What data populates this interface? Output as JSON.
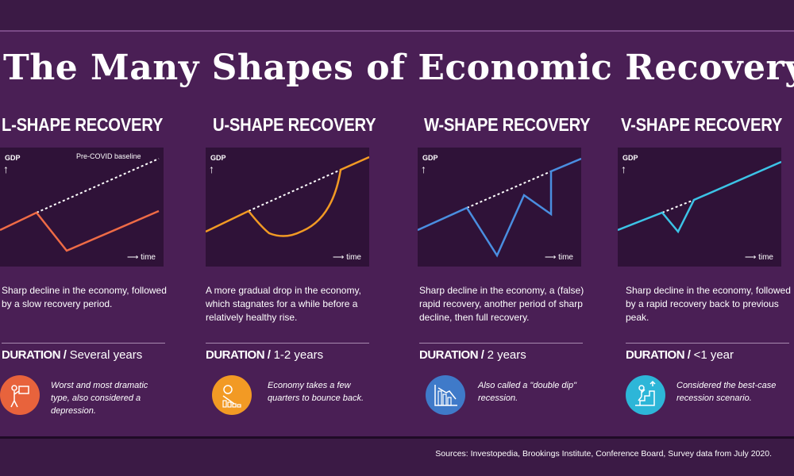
{
  "title": "The Many Shapes of Economic Recovery",
  "axis": {
    "gdp": "GDP",
    "time": "time",
    "baseline": "Pre-COVID baseline"
  },
  "duration_label": "DURATION /",
  "columns": [
    {
      "heading": "L-SHAPE RECOVERY",
      "description": "Sharp decline in the economy, followed by a slow recovery period.",
      "duration": "Several years",
      "note": "Worst and most dramatic type, also considered a depression.",
      "icon": "person-at-desk-icon",
      "color": "#e8633c",
      "line_color": "#ef6b46"
    },
    {
      "heading": "U-SHAPE RECOVERY",
      "description": "A more gradual drop in the economy, which stagnates for a while before a relatively healthy rise.",
      "duration": "1-2 years",
      "note": "Economy takes a few quarters to bounce back.",
      "icon": "falling-bars-icon",
      "color": "#f29a24",
      "line_color": "#f29a24"
    },
    {
      "heading": "W-SHAPE RECOVERY",
      "description": "Sharp decline in the economy, a (false) rapid recovery, another period of sharp decline, then full recovery.",
      "duration": "2 years",
      "note": "Also called a \"double dip\" recession.",
      "icon": "bar-chart-down-icon",
      "color": "#3f7ac9",
      "line_color": "#4a8ee0"
    },
    {
      "heading": "V-SHAPE RECOVERY",
      "description": "Sharp decline in the economy, followed by a rapid recovery back to previous peak.",
      "duration": "<1 year",
      "note": "Considered the best-case recession scenario.",
      "icon": "person-climbing-stairs-icon",
      "color": "#2db6d8",
      "line_color": "#3cc3e6"
    }
  ],
  "source": "Sources: Investopedia, Brookings Institute, Conference Board, Survey data from July 2020."
}
